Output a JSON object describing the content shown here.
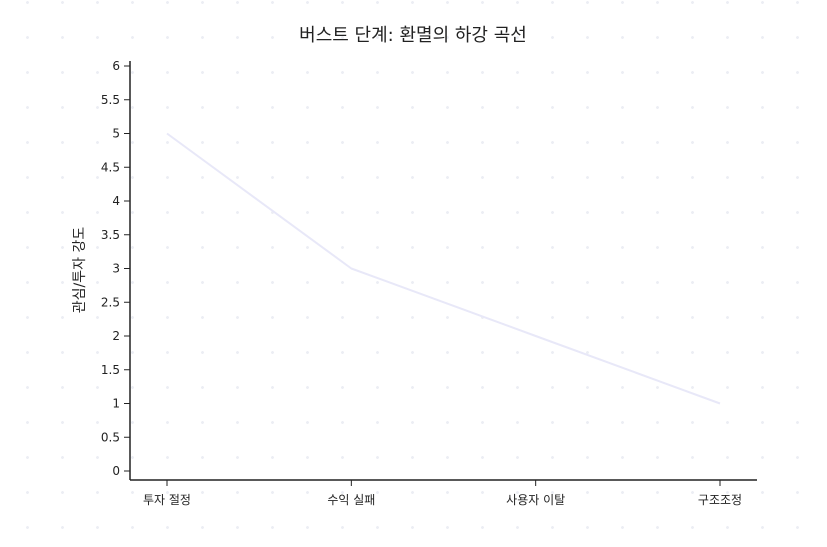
{
  "chart_data": {
    "type": "line",
    "title": "버스트 단계: 환멸의 하강 곡선",
    "xlabel": "",
    "ylabel": "관심/투자 강도",
    "categories": [
      "투자 절정",
      "수익 실패",
      "사용자 이탈",
      "구조조정"
    ],
    "series": [
      {
        "values": [
          5,
          3,
          2,
          1
        ],
        "color": "#e8e8f8"
      }
    ],
    "ylim": [
      0,
      6
    ],
    "yticks": [
      "0",
      "0.5",
      "1",
      "1.5",
      "2",
      "2.5",
      "3",
      "3.5",
      "4",
      "4.5",
      "5",
      "5.5",
      "6"
    ],
    "grid": false,
    "legend": "none"
  }
}
